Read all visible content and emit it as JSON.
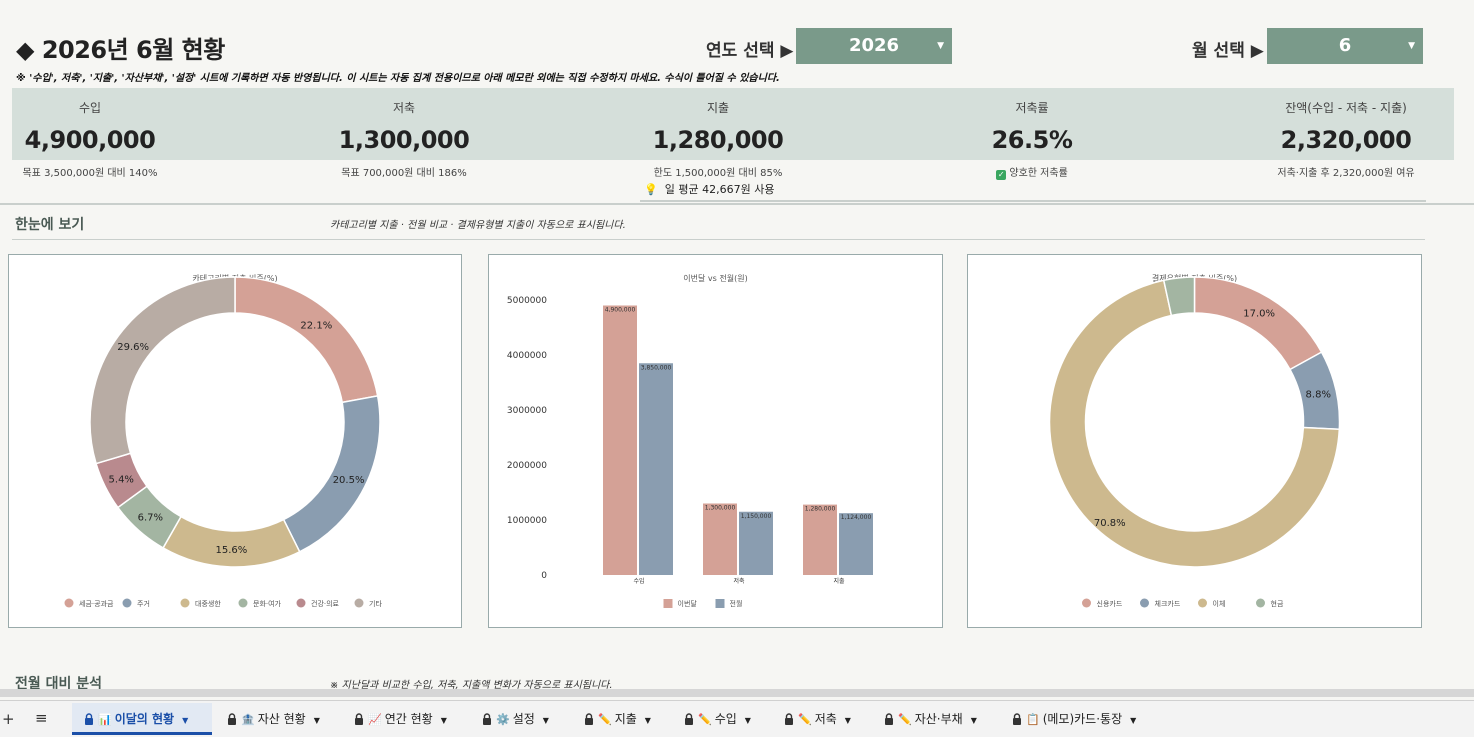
{
  "header": {
    "title": "◆ 2026년 6월 현황",
    "year_label": "연도 선택 ▶",
    "year_value": "2026",
    "month_label": "월 선택 ▶",
    "month_value": "6",
    "note": "※ '수입', 저축', '지출', '자산부채', '설정' 시트에 기록하면 자동 반영됩니다. 이 시트는 자동 집계 전용이므로 아래 메모란 외에는 직접 수정하지 마세요. 수식이 틀어질 수 있습니다."
  },
  "kpis": [
    {
      "label": "수입",
      "value": "4,900,000",
      "sub": "목표 3,500,000원 대비 140%"
    },
    {
      "label": "저축",
      "value": "1,300,000",
      "sub": "목표 700,000원 대비 186%"
    },
    {
      "label": "지출",
      "value": "1,280,000",
      "sub": "한도 1,500,000원 대비 85%",
      "sub2": "일 평균 42,667원 사용"
    },
    {
      "label": "저축률",
      "value": "26.5%",
      "sub": "양호한 저축률"
    },
    {
      "label": "잔액(수입 - 저축 - 지출)",
      "value": "2,320,000",
      "sub": "저축·지출 후 2,320,000원 여유"
    }
  ],
  "overview": {
    "title": "한눈에 보기",
    "note": "카테고리별 지출 · 전월 비교 · 결제유형별 지출이 자동으로 표시됩니다."
  },
  "comparison": {
    "title": "전월 대비 분석",
    "note": "※ 지난달과 비교한 수입, 저축, 지출액 변화가 자동으로 표시됩니다."
  },
  "chart_data": [
    {
      "type": "pie",
      "title": "카테고리별 지출 비중(%)",
      "categories": [
        "세금·공과금",
        "주거",
        "대중생한",
        "문화·여가",
        "건강·의료",
        "기타"
      ],
      "values": [
        22.1,
        20.5,
        15.6,
        6.7,
        5.4,
        29.6
      ],
      "value_labels": [
        "22.1%",
        "20.5%",
        "15.6%",
        "6.7%",
        "5.4%",
        "29.6%"
      ],
      "colors": [
        "#d4a196",
        "#8a9db0",
        "#cdb98e",
        "#a3b5a2",
        "#b98a8e",
        "#b8aca4"
      ],
      "legend": "bottom"
    },
    {
      "type": "bar",
      "title": "이번달 vs 전월(원)",
      "categories": [
        "수입",
        "저축",
        "지출"
      ],
      "series": [
        {
          "name": "이번달",
          "values": [
            4900000,
            1300000,
            1280000
          ],
          "labels": [
            "4,900,000",
            "1,300,000",
            "1,280,000"
          ],
          "color": "#d4a196"
        },
        {
          "name": "전월",
          "values": [
            3850000,
            1150000,
            1124000
          ],
          "labels": [
            "3,850,000",
            "1,150,000",
            "1,124,000"
          ],
          "color": "#8a9db0"
        }
      ],
      "ylim": [
        0,
        5000000
      ],
      "yticks": [
        "0",
        "1000000",
        "2000000",
        "3000000",
        "4000000",
        "5000000"
      ],
      "legend": "bottom"
    },
    {
      "type": "pie",
      "title": "결제유형별 지출 비중(%)",
      "categories": [
        "신용카드",
        "체크카드",
        "이체",
        "현금"
      ],
      "values": [
        17.0,
        8.8,
        70.8,
        3.4
      ],
      "value_labels": [
        "17.0%",
        "8.8%",
        "70.8%",
        ""
      ],
      "colors": [
        "#d4a196",
        "#8a9db0",
        "#cdb98e",
        "#a3b5a2"
      ],
      "legend": "bottom"
    }
  ],
  "tabs": [
    {
      "label": "이달의 현황",
      "icon": "📊",
      "active": true
    },
    {
      "label": "자산 현황",
      "icon": "🏦"
    },
    {
      "label": "연간 현황",
      "icon": "📈"
    },
    {
      "label": "설정",
      "icon": "⚙️"
    },
    {
      "label": "지출",
      "icon": "✏️"
    },
    {
      "label": "수입",
      "icon": "✏️"
    },
    {
      "label": "저축",
      "icon": "✏️"
    },
    {
      "label": "자산·부채",
      "icon": "✏️"
    },
    {
      "label": "(메모)카드·통장",
      "icon": "📋"
    }
  ]
}
